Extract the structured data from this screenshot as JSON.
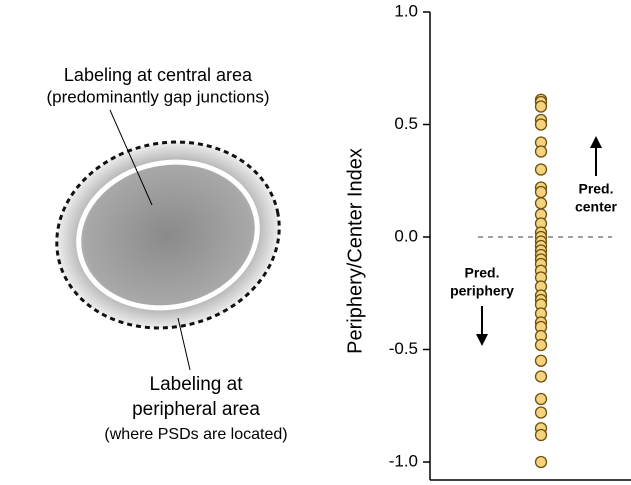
{
  "diagram": {
    "central_label": [
      "Labeling at central area",
      "(predominantly gap junctions)"
    ],
    "peripheral_label": [
      "Labeling at",
      "peripheral area",
      "(where PSDs are located)"
    ]
  },
  "chart_data": {
    "type": "strip",
    "ylabel": "Periphery/Center Index",
    "values": [
      0.61,
      0.6,
      0.58,
      0.52,
      0.5,
      0.42,
      0.38,
      0.3,
      0.22,
      0.2,
      0.15,
      0.1,
      0.06,
      0.02,
      0.0,
      -0.02,
      -0.04,
      -0.06,
      -0.08,
      -0.1,
      -0.12,
      -0.15,
      -0.18,
      -0.22,
      -0.26,
      -0.28,
      -0.3,
      -0.34,
      -0.38,
      -0.4,
      -0.44,
      -0.48,
      -0.55,
      -0.62,
      -0.72,
      -0.78,
      -0.85,
      -0.88,
      -1.0
    ],
    "color": "#f6d27c",
    "edge_color": "#6b5210",
    "ylim": [
      -1.08,
      1.0
    ],
    "yticks": [
      {
        "value": 1,
        "label": "1.0"
      },
      0.5,
      {
        "value": 0,
        "label": "0.0"
      },
      -0.5,
      {
        "value": -1,
        "label": "-1.0"
      }
    ],
    "reference_line": 0,
    "annotations": [
      [
        "Pred.",
        "center"
      ],
      [
        "Pred.",
        "periphery"
      ]
    ]
  }
}
